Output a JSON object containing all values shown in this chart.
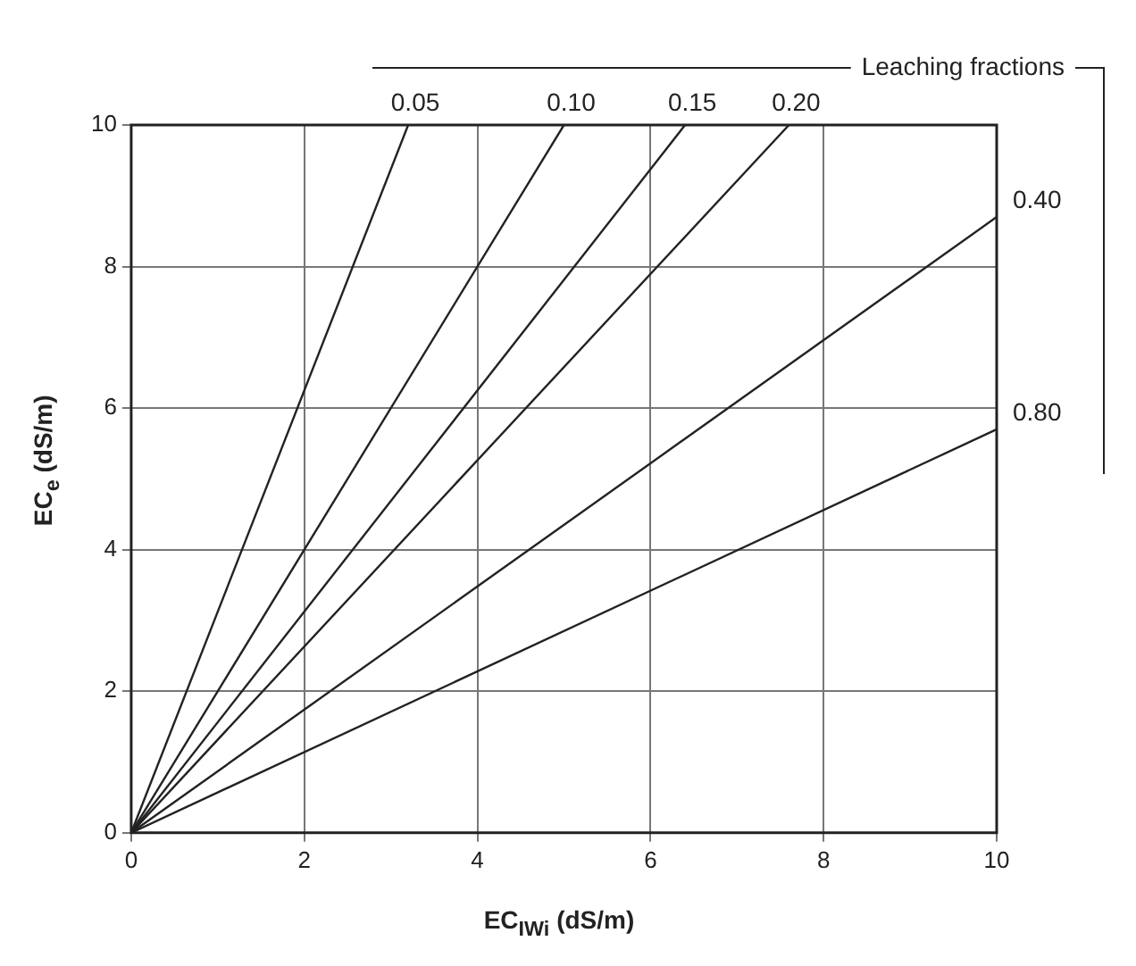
{
  "chart_data": {
    "type": "line",
    "legend_title": "Leaching fractions",
    "xlabel": "EC$_{IWi}$ (dS/m)",
    "ylabel": "EC$_{e}$ (dS/m)",
    "xlim": [
      0,
      10
    ],
    "ylim": [
      0,
      10
    ],
    "xticks": [
      0,
      2,
      4,
      6,
      8,
      10
    ],
    "yticks": [
      0,
      2,
      4,
      6,
      8,
      10
    ],
    "grid": true,
    "marker": "none",
    "line_style": "solid",
    "series": [
      {
        "name": "0.05",
        "color": "#222222",
        "x": [
          0,
          3.2
        ],
        "values": [
          0,
          10
        ]
      },
      {
        "name": "0.10",
        "color": "#222222",
        "x": [
          0,
          5.0
        ],
        "values": [
          0,
          10
        ]
      },
      {
        "name": "0.15",
        "color": "#222222",
        "x": [
          0,
          6.4
        ],
        "values": [
          0,
          10
        ]
      },
      {
        "name": "0.20",
        "color": "#222222",
        "x": [
          0,
          7.6
        ],
        "values": [
          0,
          10
        ]
      },
      {
        "name": "0.40",
        "color": "#222222",
        "x": [
          0,
          10
        ],
        "values": [
          0,
          8.7
        ]
      },
      {
        "name": "0.80",
        "color": "#222222",
        "x": [
          0,
          10
        ],
        "values": [
          0,
          5.7
        ]
      }
    ]
  }
}
